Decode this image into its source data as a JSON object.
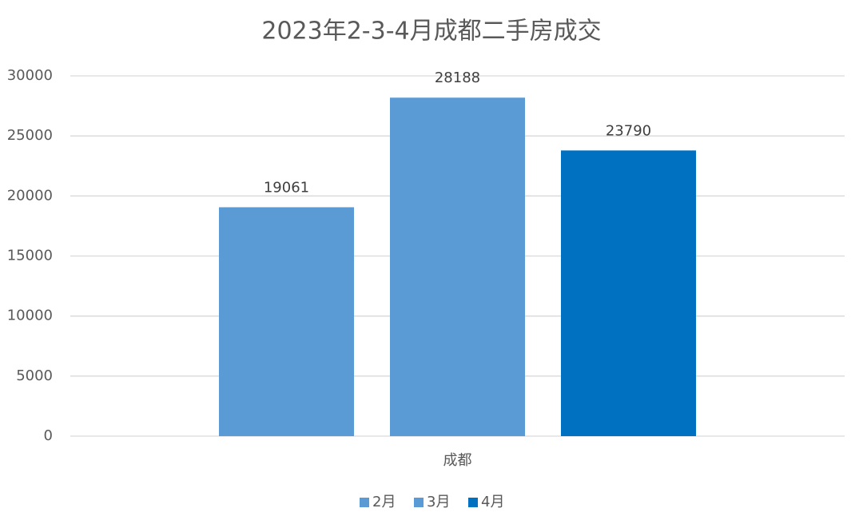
{
  "chart_data": {
    "type": "bar",
    "title": "2023年2-3-4月成都二手房成交",
    "categories": [
      "成都"
    ],
    "series": [
      {
        "name": "2月",
        "color": "#5b9bd5",
        "values": [
          19061
        ]
      },
      {
        "name": "3月",
        "color": "#5b9bd5",
        "values": [
          28188
        ]
      },
      {
        "name": "4月",
        "color": "#0070c0",
        "values": [
          23790
        ]
      }
    ],
    "ylim": [
      0,
      30000
    ],
    "yticks": [
      0,
      5000,
      10000,
      15000,
      20000,
      25000,
      30000
    ],
    "grid": true,
    "legend": "bottom"
  }
}
